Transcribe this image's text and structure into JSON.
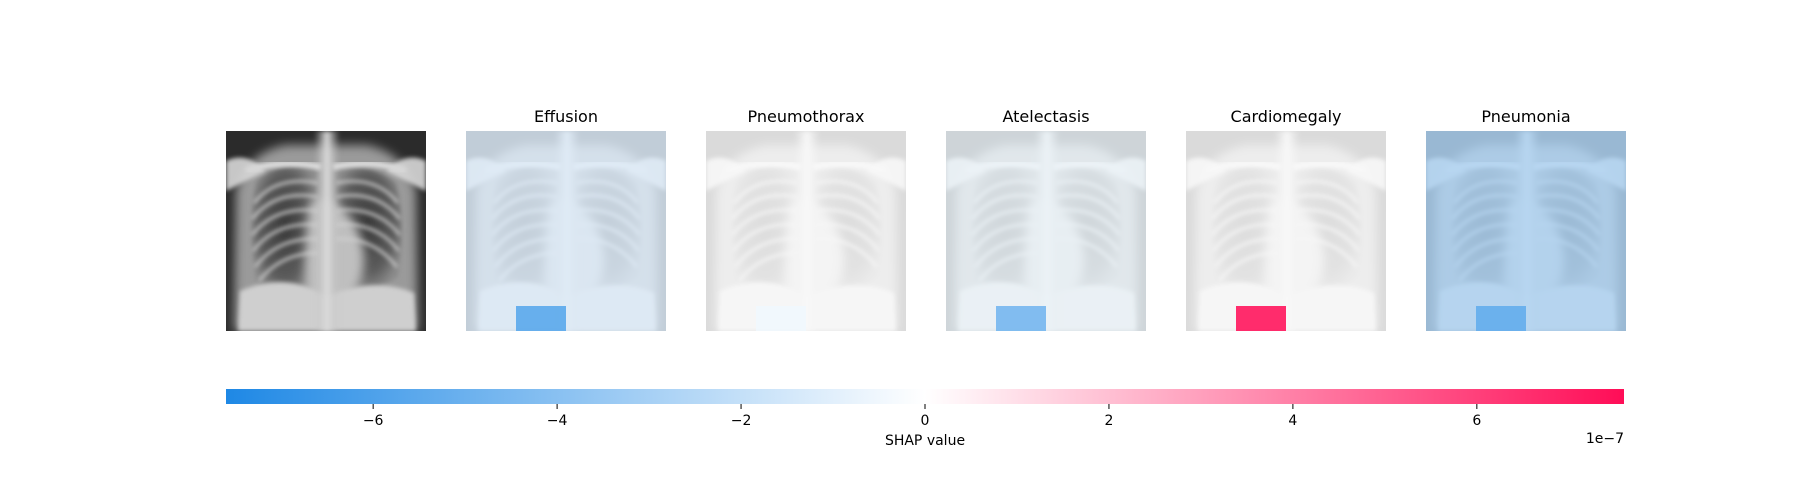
{
  "chart_data": {
    "type": "heatmap",
    "title": "",
    "original_image": {
      "subject": "chest-xray"
    },
    "panels": [
      {
        "label": "Effusion",
        "overall_value": -1.2e-07,
        "patch_value": -5.5e-07
      },
      {
        "label": "Pneumothorax",
        "overall_value": 0.0,
        "patch_value": -5e-08
      },
      {
        "label": "Atelectasis",
        "overall_value": -6e-08,
        "patch_value": -4.6e-07
      },
      {
        "label": "Cardiomegaly",
        "overall_value": 0.0,
        "patch_value": 7.2e-07
      },
      {
        "label": "Pneumonia",
        "overall_value": -3.2e-07,
        "patch_value": -5.2e-07
      }
    ],
    "colorbar": {
      "label": "SHAP value",
      "range": [
        -7.6e-07,
        7.6e-07
      ],
      "ticks": [
        -6,
        -4,
        -2,
        0,
        2,
        4,
        6
      ],
      "tick_labels": [
        "−6",
        "−4",
        "−2",
        "0",
        "2",
        "4",
        "6"
      ],
      "scale_label": "1e−7",
      "low_color": "#1e88e5",
      "high_color": "#ff0d57",
      "mid_color": "#ffffff"
    }
  }
}
